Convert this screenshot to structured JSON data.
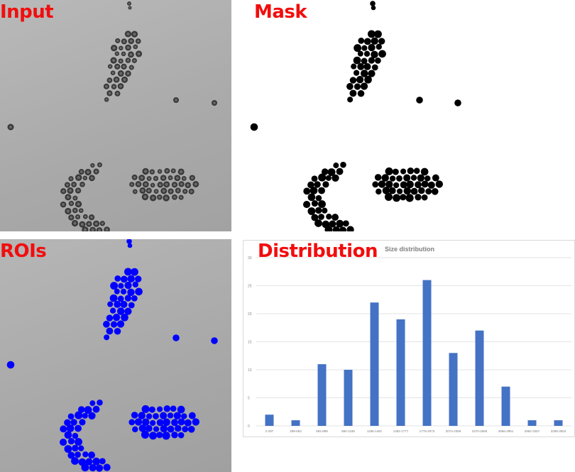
{
  "panels": {
    "input_label": "Input",
    "mask_label": "Mask",
    "rois_label": "ROIs",
    "distribution_label": "Distribution"
  },
  "colors": {
    "label": "#f20d0d",
    "roi": "#0000ff",
    "bar": "#4472c4",
    "particle": "#3a3a3a",
    "mask": "#000000"
  },
  "chart_data": {
    "type": "bar",
    "title": "Size distribution",
    "categories": [
      "2-297",
      "298-593",
      "594-889",
      "890-1185",
      "1186-1481",
      "1482-1777",
      "1778-2073",
      "2074-2369",
      "2370-2665",
      "2666-2961",
      "2962-3257",
      "3258-3553"
    ],
    "values": [
      2,
      1,
      11,
      10,
      22,
      19,
      26,
      13,
      17,
      7,
      1,
      1
    ],
    "ylim": [
      0,
      30
    ],
    "yticks": [
      0,
      5,
      10,
      15,
      20,
      25,
      30
    ],
    "grid": true,
    "xlabel": "",
    "ylabel": ""
  }
}
